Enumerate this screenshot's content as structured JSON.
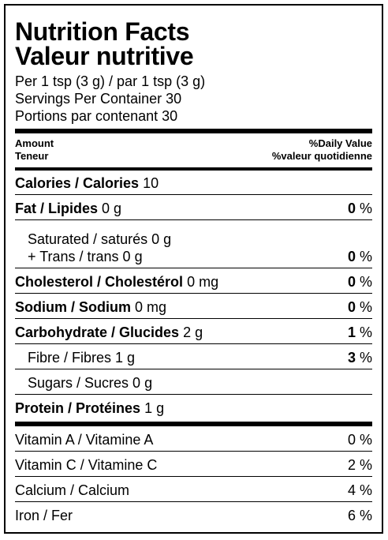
{
  "title_en": "Nutrition Facts",
  "title_fr": "Valeur nutritive",
  "serving_line1": "Per 1 tsp (3 g) / par 1 tsp (3 g)",
  "serving_line2": "Servings Per Container 30",
  "serving_line3": "Portions par contenant 30",
  "header": {
    "amount_en": "Amount",
    "amount_fr": "Teneur",
    "dv_en": "%Daily Value",
    "dv_fr": "%valeur quotidienne"
  },
  "calories": {
    "label": "Calories / Calories",
    "amount": "10"
  },
  "fat": {
    "label": "Fat / Lipides",
    "amount": "0 g",
    "dv_num": "0",
    "dv_unit": " %"
  },
  "saturated": {
    "label": "Saturated / saturés 0 g",
    "trans": "+ Trans / trans 0 g",
    "dv_num": "0",
    "dv_unit": " %"
  },
  "cholesterol": {
    "label": "Cholesterol / Cholestérol",
    "amount": "0 mg",
    "dv_num": "0",
    "dv_unit": " %"
  },
  "sodium": {
    "label": "Sodium / Sodium",
    "amount": "0 mg",
    "dv_num": "0",
    "dv_unit": " %"
  },
  "carbohydrate": {
    "label": "Carbohydrate / Glucides",
    "amount": "2 g",
    "dv_num": "1",
    "dv_unit": " %"
  },
  "fibre": {
    "label": "Fibre / Fibres 1 g",
    "dv_num": "3",
    "dv_unit": " %"
  },
  "sugars": {
    "label": "Sugars / Sucres 0 g"
  },
  "protein": {
    "label": "Protein / Protéines",
    "amount": "1 g"
  },
  "vitamins": [
    {
      "label": "Vitamin A / Vitamine A",
      "dv": "0 %"
    },
    {
      "label": "Vitamin C / Vitamine C",
      "dv": "2 %"
    },
    {
      "label": "Calcium / Calcium",
      "dv": "4 %"
    },
    {
      "label": "Iron / Fer",
      "dv": "6 %"
    }
  ]
}
